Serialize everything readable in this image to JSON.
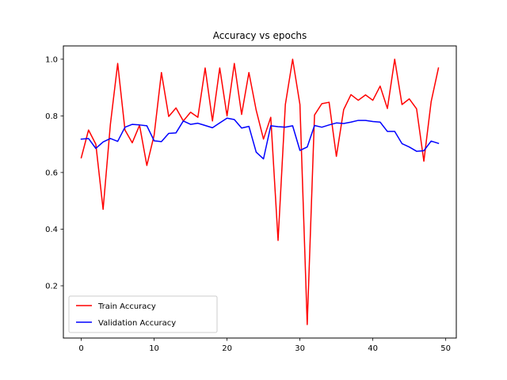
{
  "chart_data": {
    "type": "line",
    "title": "Accuracy vs epochs",
    "xlabel": "",
    "ylabel": "",
    "xlim": [
      -2.45,
      51.45
    ],
    "ylim": [
      0.0155,
      1.047
    ],
    "xticks": [
      0,
      10,
      20,
      30,
      40,
      50
    ],
    "yticks": [
      0.2,
      0.4,
      0.6,
      0.8,
      1.0
    ],
    "ytick_labels": [
      "0.2",
      "0.4",
      "0.6",
      "0.8",
      "1.0"
    ],
    "grid": false,
    "legend_position": "lower-left",
    "x": [
      0,
      1,
      2,
      3,
      4,
      5,
      6,
      7,
      8,
      9,
      10,
      11,
      12,
      13,
      14,
      15,
      16,
      17,
      18,
      19,
      20,
      21,
      22,
      23,
      24,
      25,
      26,
      27,
      28,
      29,
      30,
      31,
      32,
      33,
      34,
      35,
      36,
      37,
      38,
      39,
      40,
      41,
      42,
      43,
      44,
      45,
      46,
      47,
      48,
      49
    ],
    "series": [
      {
        "name": "Train Accuracy",
        "color": "#ff0000",
        "values": [
          0.652,
          0.75,
          0.7,
          0.47,
          0.77,
          0.985,
          0.75,
          0.705,
          0.767,
          0.625,
          0.732,
          0.953,
          0.798,
          0.828,
          0.782,
          0.813,
          0.795,
          0.969,
          0.782,
          0.969,
          0.8,
          0.985,
          0.805,
          0.953,
          0.82,
          0.718,
          0.795,
          0.36,
          0.84,
          1.0,
          0.84,
          0.063,
          0.803,
          0.843,
          0.848,
          0.657,
          0.822,
          0.875,
          0.855,
          0.874,
          0.855,
          0.905,
          0.826,
          1.0,
          0.84,
          0.86,
          0.825,
          0.64,
          0.85,
          0.969
        ]
      },
      {
        "name": "Validation Accuracy",
        "color": "#0000ff",
        "values": [
          0.718,
          0.72,
          0.685,
          0.708,
          0.72,
          0.71,
          0.76,
          0.77,
          0.768,
          0.765,
          0.712,
          0.709,
          0.738,
          0.74,
          0.782,
          0.77,
          0.774,
          0.766,
          0.758,
          0.775,
          0.792,
          0.787,
          0.757,
          0.763,
          0.672,
          0.648,
          0.765,
          0.762,
          0.76,
          0.765,
          0.678,
          0.69,
          0.766,
          0.76,
          0.768,
          0.775,
          0.773,
          0.778,
          0.784,
          0.784,
          0.78,
          0.778,
          0.745,
          0.745,
          0.702,
          0.69,
          0.675,
          0.677,
          0.711,
          0.703
        ]
      }
    ]
  }
}
